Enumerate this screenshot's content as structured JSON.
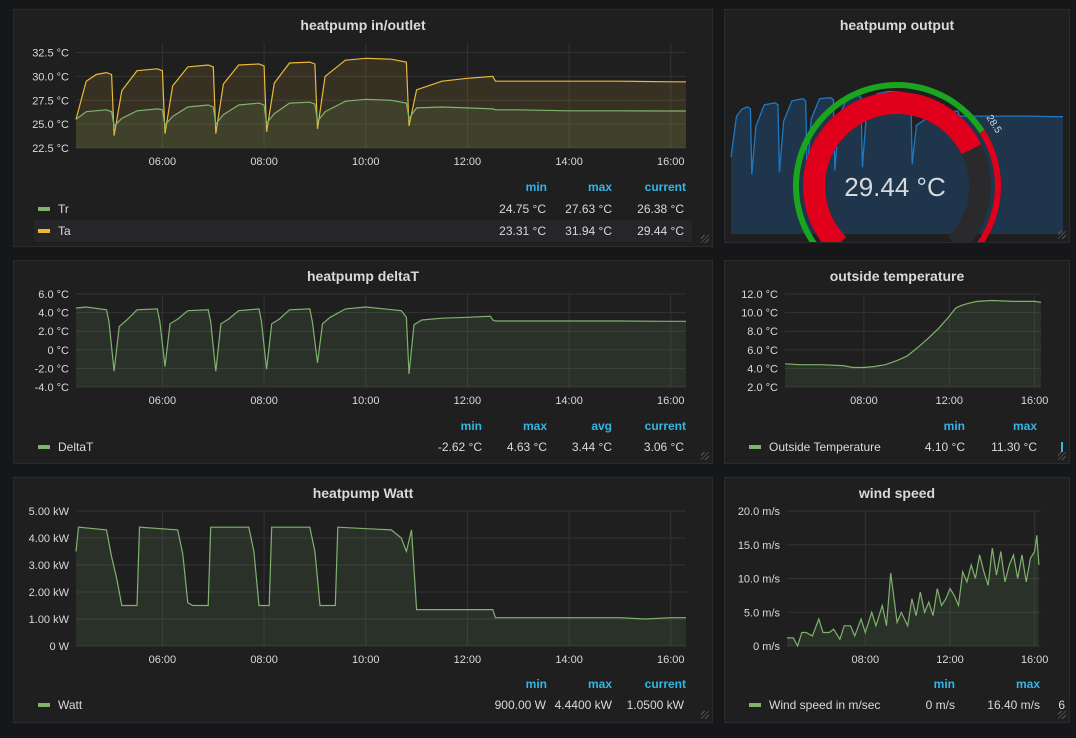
{
  "panels": {
    "inout": {
      "title": "heatpump in/outlet",
      "legend_headers": [
        "min",
        "max",
        "current"
      ],
      "legend": [
        {
          "name": "Tr",
          "color": "#7eb26d",
          "min": "24.75 °C",
          "max": "27.63 °C",
          "current": "26.38 °C"
        },
        {
          "name": "Ta",
          "color": "#eab839",
          "min": "23.31 °C",
          "max": "31.94 °C",
          "current": "29.44 °C"
        }
      ]
    },
    "output": {
      "title": "heatpump output",
      "value": "29.44 °C",
      "gauge_min": "0",
      "gauge_max": "40",
      "gauge_threshold": "28.5"
    },
    "deltat": {
      "title": "heatpump deltaT",
      "legend_headers": [
        "min",
        "max",
        "avg",
        "current"
      ],
      "legend": [
        {
          "name": "DeltaT",
          "color": "#7eb26d",
          "min": "-2.62 °C",
          "max": "4.63 °C",
          "avg": "3.44 °C",
          "current": "3.06 °C"
        }
      ]
    },
    "outside": {
      "title": "outside temperature",
      "legend_headers": [
        "min",
        "max"
      ],
      "legend": [
        {
          "name": "Outside Temperature",
          "color": "#7eb26d",
          "min": "4.10 °C",
          "max": "11.30 °C"
        }
      ]
    },
    "watt": {
      "title": "heatpump Watt",
      "legend_headers": [
        "min",
        "max",
        "current"
      ],
      "legend": [
        {
          "name": "Watt",
          "color": "#7eb26d",
          "min": "900.00 W",
          "max": "4.4400 kW",
          "current": "1.0500 kW"
        }
      ]
    },
    "wind": {
      "title": "wind speed",
      "legend_headers": [
        "min",
        "max"
      ],
      "legend": [
        {
          "name": "Wind speed in m/sec",
          "color": "#7eb26d",
          "min": "0 m/s",
          "max": "16.40 m/s",
          "extra": "6"
        }
      ]
    }
  },
  "chart_data": [
    {
      "id": "inout",
      "type": "line",
      "title": "heatpump in/outlet",
      "xlim": [
        4.3,
        16.3
      ],
      "ylim": [
        22.5,
        33.5
      ],
      "yticks": [
        22.5,
        25.0,
        27.5,
        30.0,
        32.5
      ],
      "ytick_labels": [
        "22.5 °C",
        "25.0 °C",
        "27.5 °C",
        "30.0 °C",
        "32.5 °C"
      ],
      "xticks": [
        6,
        8,
        10,
        12,
        14,
        16
      ],
      "xtick_labels": [
        "06:00",
        "08:00",
        "10:00",
        "12:00",
        "14:00",
        "16:00"
      ],
      "fill": true,
      "series": [
        {
          "name": "Ta",
          "color": "#eab839",
          "x": [
            4.3,
            4.5,
            4.7,
            4.9,
            5.0,
            5.05,
            5.2,
            5.5,
            5.9,
            6.0,
            6.05,
            6.2,
            6.5,
            6.9,
            7.0,
            7.05,
            7.2,
            7.5,
            7.9,
            8.0,
            8.05,
            8.2,
            8.5,
            8.9,
            9.0,
            9.05,
            9.2,
            9.6,
            10.0,
            10.5,
            10.8,
            10.85,
            11.0,
            11.5,
            12.0,
            12.5,
            12.55,
            13,
            14,
            15,
            16,
            16.3
          ],
          "y": [
            25.5,
            29.5,
            30.2,
            30.4,
            30.2,
            23.8,
            28.5,
            30.6,
            30.8,
            30.6,
            24.0,
            29.0,
            31.0,
            31.2,
            31.0,
            24.0,
            29.2,
            31.2,
            31.3,
            31.1,
            24.2,
            29.3,
            31.4,
            31.5,
            31.3,
            24.5,
            30.0,
            31.7,
            31.9,
            31.8,
            31.5,
            24.8,
            28.6,
            29.5,
            29.8,
            30.0,
            29.5,
            29.5,
            29.5,
            29.5,
            29.44,
            29.44
          ]
        },
        {
          "name": "Tr",
          "color": "#7eb26d",
          "x": [
            4.3,
            4.5,
            4.9,
            5.0,
            5.05,
            5.2,
            5.5,
            5.9,
            6.0,
            6.05,
            6.2,
            6.5,
            6.9,
            7.0,
            7.05,
            7.2,
            7.5,
            7.9,
            8.0,
            8.05,
            8.2,
            8.5,
            8.9,
            9.0,
            9.05,
            9.2,
            9.6,
            10.0,
            10.5,
            10.8,
            10.85,
            11.0,
            11.5,
            12.0,
            12.5,
            12.55,
            13,
            14,
            15,
            16,
            16.3
          ],
          "y": [
            25.5,
            26.3,
            26.5,
            26.3,
            24.8,
            25.6,
            26.4,
            26.6,
            26.5,
            24.9,
            25.8,
            26.8,
            27.0,
            26.8,
            25.0,
            26.0,
            27.0,
            27.2,
            27.0,
            25.1,
            26.1,
            27.2,
            27.3,
            27.1,
            25.3,
            26.3,
            27.4,
            27.6,
            27.5,
            27.2,
            25.6,
            26.7,
            26.8,
            26.7,
            26.6,
            26.5,
            26.5,
            26.4,
            26.4,
            26.38,
            26.38
          ]
        }
      ]
    },
    {
      "id": "output",
      "type": "line",
      "title": "heatpump output",
      "series": [
        {
          "name": "Ta",
          "color": "#1f78c1",
          "x": [
            4.3,
            4.5,
            4.7,
            4.9,
            5.0,
            5.05,
            5.2,
            5.5,
            5.9,
            6.0,
            6.05,
            6.2,
            6.5,
            6.9,
            7.0,
            7.05,
            7.2,
            7.5,
            7.9,
            8.0,
            8.05,
            8.2,
            8.5,
            8.9,
            9.0,
            9.05,
            9.2,
            9.6,
            10.0,
            10.5,
            10.8,
            10.85,
            11.0,
            11.5,
            12.0,
            12.5,
            12.55,
            13,
            14,
            15,
            16,
            16.3
          ],
          "y": [
            25.5,
            29.5,
            30.2,
            30.4,
            30.2,
            23.8,
            28.5,
            30.6,
            30.8,
            30.6,
            24.0,
            29.0,
            31.0,
            31.2,
            31.0,
            24.0,
            29.2,
            31.2,
            31.3,
            31.1,
            24.2,
            29.3,
            31.4,
            31.5,
            31.3,
            24.5,
            30.0,
            31.7,
            31.9,
            31.8,
            31.5,
            24.8,
            28.6,
            29.5,
            29.8,
            30.0,
            29.5,
            29.5,
            29.5,
            29.5,
            29.44,
            29.44
          ]
        }
      ]
    },
    {
      "id": "deltat",
      "type": "line",
      "title": "heatpump deltaT",
      "xlim": [
        4.3,
        16.3
      ],
      "ylim": [
        -4.0,
        6.0
      ],
      "yticks": [
        -4,
        -2,
        0,
        2,
        4,
        6
      ],
      "ytick_labels": [
        "-4.0 °C",
        "-2.0 °C",
        "0 °C",
        "2.0 °C",
        "4.0 °C",
        "6.0 °C"
      ],
      "xticks": [
        6,
        8,
        10,
        12,
        14,
        16
      ],
      "xtick_labels": [
        "06:00",
        "08:00",
        "10:00",
        "12:00",
        "14:00",
        "16:00"
      ],
      "fill": true,
      "series": [
        {
          "name": "DeltaT",
          "color": "#7eb26d",
          "x": [
            4.3,
            4.5,
            4.9,
            4.95,
            5.05,
            5.15,
            5.3,
            5.5,
            5.9,
            5.95,
            6.05,
            6.15,
            6.3,
            6.5,
            6.9,
            6.95,
            7.05,
            7.15,
            7.3,
            7.5,
            7.9,
            7.95,
            8.05,
            8.15,
            8.3,
            8.5,
            8.9,
            8.95,
            9.05,
            9.15,
            9.3,
            9.6,
            10.0,
            10.7,
            10.8,
            10.85,
            10.95,
            11.1,
            11.5,
            12.0,
            12.45,
            12.5,
            12.55,
            13,
            14,
            15,
            16,
            16.3
          ],
          "y": [
            4.5,
            4.6,
            4.3,
            3.0,
            -2.3,
            2.5,
            3.2,
            4.3,
            4.4,
            3.0,
            -1.8,
            2.8,
            3.3,
            4.2,
            4.3,
            3.0,
            -2.3,
            2.8,
            3.3,
            4.2,
            4.4,
            3.0,
            -2.1,
            2.8,
            3.3,
            4.3,
            4.4,
            3.0,
            -1.4,
            2.8,
            3.5,
            4.4,
            4.6,
            4.2,
            3.5,
            -2.6,
            2.7,
            3.2,
            3.4,
            3.5,
            3.6,
            3.2,
            3.1,
            3.1,
            3.1,
            3.1,
            3.06,
            3.06
          ]
        }
      ]
    },
    {
      "id": "outside",
      "type": "line",
      "title": "outside temperature",
      "xlim": [
        4.3,
        16.3
      ],
      "ylim": [
        2.0,
        12.0
      ],
      "yticks": [
        2,
        4,
        6,
        8,
        10,
        12
      ],
      "ytick_labels": [
        "2.0 °C",
        "4.0 °C",
        "6.0 °C",
        "8.0 °C",
        "10.0 °C",
        "12.0 °C"
      ],
      "xticks": [
        8,
        12,
        16
      ],
      "xtick_labels": [
        "08:00",
        "12:00",
        "16:00"
      ],
      "fill": true,
      "series": [
        {
          "name": "Outside Temperature",
          "color": "#7eb26d",
          "x": [
            4.3,
            5,
            6,
            7,
            7.5,
            8,
            8.5,
            9,
            9.5,
            10,
            10.5,
            11,
            11.5,
            12,
            12.3,
            12.6,
            12.9,
            13.3,
            14,
            15,
            16,
            16.3
          ],
          "y": [
            4.5,
            4.4,
            4.4,
            4.3,
            4.1,
            4.1,
            4.2,
            4.4,
            4.8,
            5.3,
            6.2,
            7.2,
            8.3,
            9.6,
            10.5,
            10.8,
            11.0,
            11.2,
            11.3,
            11.2,
            11.2,
            11.1
          ]
        }
      ]
    },
    {
      "id": "watt",
      "type": "line",
      "title": "heatpump Watt",
      "xlim": [
        4.3,
        16.3
      ],
      "ylim": [
        0,
        5.0
      ],
      "yticks": [
        0,
        1,
        2,
        3,
        4,
        5
      ],
      "ytick_labels": [
        "0 W",
        "1.00 kW",
        "2.00 kW",
        "3.00 kW",
        "4.00 kW",
        "5.00 kW"
      ],
      "xticks": [
        6,
        8,
        10,
        12,
        14,
        16
      ],
      "xtick_labels": [
        "06:00",
        "08:00",
        "10:00",
        "12:00",
        "14:00",
        "16:00"
      ],
      "fill": true,
      "series": [
        {
          "name": "Watt",
          "color": "#7eb26d",
          "x": [
            4.3,
            4.35,
            4.9,
            5.0,
            5.1,
            5.2,
            5.4,
            5.5,
            5.55,
            6.3,
            6.4,
            6.5,
            6.6,
            6.9,
            6.95,
            7.7,
            7.8,
            7.9,
            8.1,
            8.15,
            8.9,
            9.0,
            9.1,
            9.2,
            9.4,
            9.45,
            10.5,
            10.7,
            10.8,
            10.9,
            11.0,
            12.0,
            12.5,
            12.55,
            13,
            14,
            15,
            15.5,
            16,
            16.3
          ],
          "y": [
            3.5,
            4.4,
            4.3,
            3.3,
            2.5,
            1.5,
            1.5,
            1.5,
            4.4,
            4.3,
            3.4,
            1.6,
            1.5,
            1.5,
            4.4,
            4.4,
            3.5,
            1.5,
            1.5,
            4.4,
            4.4,
            3.5,
            1.5,
            1.5,
            1.5,
            4.4,
            4.3,
            4.0,
            3.5,
            4.3,
            1.35,
            1.35,
            1.35,
            1.05,
            1.05,
            1.05,
            1.05,
            1.0,
            1.05,
            1.05
          ]
        }
      ]
    },
    {
      "id": "wind",
      "type": "line",
      "title": "wind speed",
      "xlim": [
        4.3,
        16.3
      ],
      "ylim": [
        0,
        20.0
      ],
      "yticks": [
        0,
        5,
        10,
        15,
        20
      ],
      "ytick_labels": [
        "0 m/s",
        "5.0 m/s",
        "10.0 m/s",
        "15.0 m/s",
        "20.0 m/s"
      ],
      "xticks": [
        8,
        12,
        16
      ],
      "xtick_labels": [
        "08:00",
        "12:00",
        "16:00"
      ],
      "fill": true,
      "series": [
        {
          "name": "Wind speed in m/sec",
          "color": "#7eb26d",
          "x": [
            4.3,
            4.6,
            4.8,
            5.0,
            5.2,
            5.5,
            5.8,
            6.0,
            6.3,
            6.5,
            6.8,
            7.0,
            7.3,
            7.5,
            7.8,
            8.0,
            8.3,
            8.5,
            8.8,
            9.0,
            9.2,
            9.5,
            9.7,
            10.0,
            10.2,
            10.4,
            10.6,
            10.8,
            11.0,
            11.2,
            11.4,
            11.6,
            11.8,
            12.0,
            12.2,
            12.4,
            12.6,
            12.8,
            13.0,
            13.2,
            13.4,
            13.6,
            13.8,
            14.0,
            14.2,
            14.4,
            14.6,
            14.8,
            15.0,
            15.2,
            15.4,
            15.6,
            15.8,
            16.0,
            16.1,
            16.2
          ],
          "y": [
            1.2,
            1.2,
            0,
            2.0,
            2.0,
            1.5,
            4.0,
            2.0,
            2.0,
            2.5,
            1.0,
            3.0,
            3.0,
            1.5,
            4.0,
            2.0,
            5.0,
            3.0,
            6.0,
            3.0,
            10.8,
            3.5,
            5.0,
            3.0,
            7.0,
            4.5,
            8.0,
            5.0,
            6.5,
            4.5,
            8.5,
            6.0,
            7.0,
            8.5,
            7.5,
            6.0,
            11.0,
            9.5,
            12.0,
            10.0,
            13.5,
            11.0,
            9.0,
            14.5,
            10.5,
            14.0,
            9.5,
            12.0,
            13.5,
            10.0,
            13.5,
            9.5,
            13.0,
            14.0,
            16.4,
            12.0
          ]
        }
      ]
    }
  ]
}
